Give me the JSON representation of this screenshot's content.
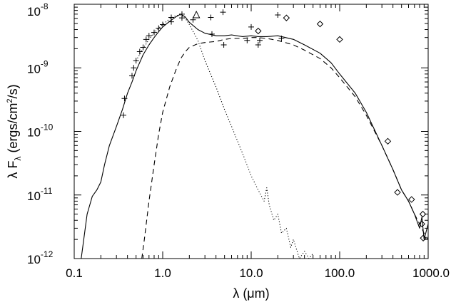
{
  "chart_data": {
    "type": "line",
    "xlabel": "λ (μm)",
    "ylabel": "λ F_λ (ergs/cm²/s)",
    "xscale": "log",
    "yscale": "log",
    "xlim": [
      0.1,
      1000.0
    ],
    "ylim": [
      1e-12,
      1e-08
    ],
    "grid": false,
    "legend": "none",
    "xticks": [
      {
        "value": 0.1,
        "label": "0.1"
      },
      {
        "value": 1.0,
        "label": "1.0"
      },
      {
        "value": 10.0,
        "label": "10.0"
      },
      {
        "value": 100.0,
        "label": "100.0"
      },
      {
        "value": 1000.0,
        "label": "1000.0"
      }
    ],
    "yticks": [
      {
        "value": 1e-12,
        "base": "10",
        "exp": "-12"
      },
      {
        "value": 1e-11,
        "base": "10",
        "exp": "-11"
      },
      {
        "value": 1e-10,
        "base": "10",
        "exp": "-10"
      },
      {
        "value": 1e-09,
        "base": "10",
        "exp": "-9"
      },
      {
        "value": 1e-08,
        "base": "10",
        "exp": "-8"
      }
    ],
    "series": [
      {
        "style": "solid",
        "x": [
          0.12,
          0.14,
          0.16,
          0.18,
          0.2,
          0.22,
          0.25,
          0.3,
          0.35,
          0.4,
          0.45,
          0.5,
          0.6,
          0.7,
          0.8,
          0.9,
          1.0,
          1.2,
          1.4,
          1.6,
          1.8,
          2.0,
          2.5,
          3.0,
          4.0,
          5.0,
          6.0,
          8.0,
          10.0,
          12.0,
          15.0,
          20.0,
          30.0,
          40.0,
          60.0,
          80.0,
          100.0,
          150.0,
          200.0,
          300.0,
          400.0,
          500.0,
          600.0,
          700.0,
          800.0,
          850.0,
          900.0,
          1000.0
        ],
        "y": [
          1e-12,
          5e-12,
          9.5e-12,
          1.2e-11,
          1.6e-11,
          3e-11,
          6e-11,
          1.2e-10,
          2.2e-10,
          4e-10,
          6e-10,
          9e-10,
          1.6e-09,
          2.3e-09,
          3e-09,
          3.7e-09,
          4.4e-09,
          5.4e-09,
          6.3e-09,
          7e-09,
          6.3e-09,
          5.2e-09,
          4e-09,
          3.5e-09,
          3.2e-09,
          3.2e-09,
          3.3e-09,
          3.1e-09,
          3.2e-09,
          3.1e-09,
          3.1e-09,
          3.2e-09,
          2.8e-09,
          2.3e-09,
          1.7e-09,
          1.2e-09,
          8e-10,
          4e-10,
          2e-10,
          6e-11,
          2.5e-11,
          1.2e-11,
          8e-12,
          5e-12,
          3e-12,
          4.5e-12,
          2e-12,
          3.5e-12
        ]
      },
      {
        "style": "dotted",
        "x": [
          0.5,
          0.6,
          0.7,
          0.8,
          1.0,
          1.2,
          1.4,
          1.6,
          1.8,
          2.0,
          2.5,
          3.0,
          4.0,
          5.0,
          6.0,
          8.0,
          10.0,
          12.0,
          14.0,
          15.0,
          16.0,
          18.0,
          20.0,
          22.0,
          25.0,
          28.0,
          30.0,
          35.0,
          40.0,
          45.0,
          50.0
        ],
        "y": [
          1.3e-09,
          2e-09,
          2.8e-09,
          3.6e-09,
          4.8e-09,
          5.9e-09,
          6.6e-09,
          6.8e-09,
          6e-09,
          4.8e-09,
          2.7e-09,
          1.3e-09,
          5e-10,
          2.2e-10,
          1.2e-10,
          4.5e-11,
          2e-11,
          1.2e-11,
          8e-12,
          1.3e-11,
          7e-12,
          4e-12,
          5e-12,
          2.5e-12,
          3e-12,
          1.5e-12,
          2e-12,
          1e-12,
          1.3e-12,
          1e-12,
          1.2e-12
        ]
      },
      {
        "style": "dashed",
        "x": [
          0.58,
          0.62,
          0.7,
          0.8,
          0.9,
          1.0,
          1.2,
          1.4,
          1.6,
          1.8,
          2.0,
          2.5,
          3.0,
          4.0,
          5.0,
          6.0,
          8.0,
          10.0,
          12.0,
          15.0,
          20.0,
          30.0,
          40.0,
          60.0,
          80.0,
          100.0,
          150.0,
          200.0,
          300.0,
          400.0,
          500.0,
          600.0,
          700.0,
          800.0,
          900.0,
          1000.0
        ],
        "y": [
          1e-12,
          2e-12,
          8e-12,
          3e-11,
          9e-11,
          2e-10,
          5e-10,
          9e-10,
          1.4e-09,
          1.8e-09,
          2.1e-09,
          2.4e-09,
          2.5e-09,
          2.6e-09,
          2.8e-09,
          2.9e-09,
          2.9e-09,
          3e-09,
          3e-09,
          2.9e-09,
          2.7e-09,
          2.3e-09,
          1.9e-09,
          1.4e-09,
          1e-09,
          7e-10,
          3.5e-10,
          1.8e-10,
          6e-11,
          2.5e-11,
          1.2e-11,
          8e-12,
          5e-12,
          3.5e-12,
          2.5e-12,
          2e-12
        ]
      }
    ],
    "markers": {
      "plus": {
        "x": [
          0.36,
          0.37,
          0.45,
          0.47,
          0.5,
          0.55,
          0.6,
          0.65,
          0.7,
          0.8,
          0.9,
          1.0,
          1.25,
          1.25,
          1.65,
          1.65,
          2.2,
          3.5,
          3.6,
          4.8,
          4.9,
          9.0,
          10.0,
          12.0,
          12.5,
          20.0,
          22.0
        ],
        "y": [
          1.8e-10,
          3.3e-10,
          7.5e-10,
          1e-09,
          1.3e-09,
          1.8e-09,
          2.1e-09,
          2.8e-09,
          3.2e-09,
          3.6e-09,
          4.2e-09,
          4.8e-09,
          5.3e-09,
          6.2e-09,
          6.1e-09,
          7e-09,
          5.7e-09,
          6.2e-09,
          3.4e-09,
          7.5e-09,
          2.3e-09,
          2.7e-09,
          4.4e-09,
          2.3e-09,
          2.7e-09,
          6.8e-09,
          2.9e-09
        ]
      },
      "diamond": {
        "x": [
          12.0,
          25.0,
          60.0,
          100.0,
          350.0,
          450.0,
          650.0,
          850.0,
          870.0,
          880.0
        ],
        "y": [
          3.8e-09,
          6.1e-09,
          4.9e-09,
          2.8e-09,
          7e-11,
          1.1e-11,
          8.5e-12,
          3.5e-12,
          5e-12,
          2.1e-12
        ]
      },
      "triangle": {
        "x": [
          2.4
        ],
        "y": [
          6.8e-09
        ]
      }
    }
  }
}
